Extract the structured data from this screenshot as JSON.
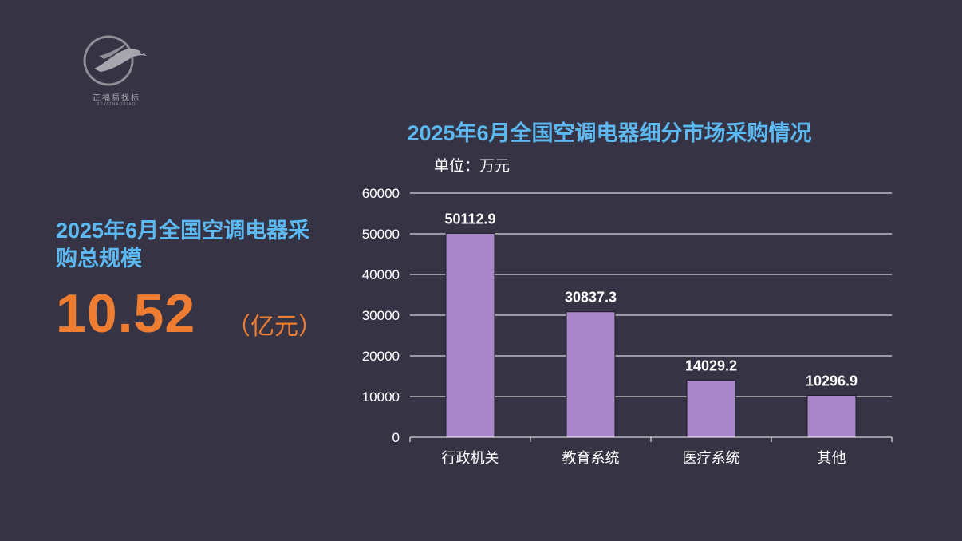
{
  "logo": {
    "name": "正福易找标",
    "subtitle": "ZFYIZHAOBIAO",
    "icon": "eagle-logo-icon"
  },
  "summary": {
    "title": "2025年6月全国空调电器采购总规模",
    "value": "10.52",
    "unit": "（亿元）"
  },
  "colors": {
    "background": "#363344",
    "title_blue": "#5bb8f0",
    "accent_orange": "#ee7d31",
    "bar": "#a987c9"
  },
  "chart_data": {
    "type": "bar",
    "title": "2025年6月全国空调电器细分市场采购情况",
    "unit_label": "单位：万元",
    "categories": [
      "行政机关",
      "教育系统",
      "医疗系统",
      "其他"
    ],
    "values": [
      50112.9,
      30837.3,
      14029.2,
      10296.9
    ],
    "data_labels": [
      "50112.9",
      "30837.3",
      "14029.2",
      "10296.9"
    ],
    "ylim": [
      0,
      60000
    ],
    "yticks": [
      0,
      10000,
      20000,
      30000,
      40000,
      50000,
      60000
    ],
    "grid": true,
    "legend": "none"
  }
}
